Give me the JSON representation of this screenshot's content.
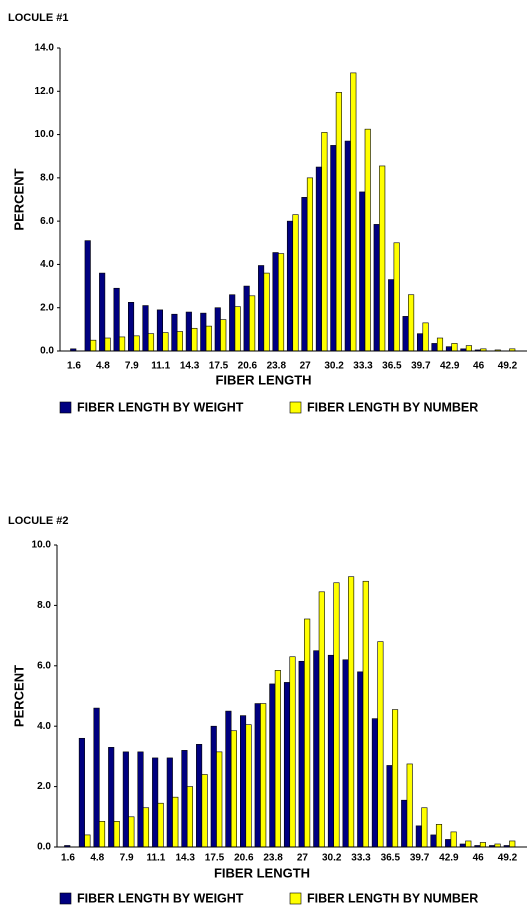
{
  "chart_data": [
    {
      "type": "bar",
      "title": "LOCULE #1",
      "x_label": "FIBER LENGTH",
      "y_label": "PERCENT",
      "categories": [
        "1.6",
        null,
        "4.8",
        null,
        "7.9",
        null,
        "11.1",
        null,
        "14.3",
        null,
        "17.5",
        null,
        "20.6",
        null,
        "23.8",
        null,
        "27",
        null,
        "30.2",
        null,
        "33.3",
        null,
        "36.5",
        null,
        "39.7",
        null,
        "42.9",
        null,
        "46",
        null,
        "49.2"
      ],
      "series": [
        {
          "name": "FIBER LENGTH BY WEIGHT",
          "color": "#000080",
          "values": [
            0.1,
            5.1,
            3.6,
            2.9,
            2.25,
            2.1,
            1.9,
            1.7,
            1.8,
            1.75,
            2.0,
            2.6,
            3.0,
            3.95,
            4.55,
            6.0,
            7.1,
            8.5,
            9.5,
            9.7,
            7.35,
            5.85,
            3.3,
            1.6,
            0.8,
            0.35,
            0.2,
            0.1,
            0.05,
            0.0,
            0.0
          ]
        },
        {
          "name": "FIBER LENGTH BY NUMBER",
          "color": "#ffff00",
          "values": [
            0.0,
            0.5,
            0.6,
            0.65,
            0.7,
            0.8,
            0.85,
            0.9,
            1.05,
            1.15,
            1.45,
            2.05,
            2.55,
            3.6,
            4.5,
            6.3,
            8.0,
            10.1,
            11.95,
            12.85,
            10.25,
            8.55,
            5.0,
            2.6,
            1.3,
            0.6,
            0.35,
            0.25,
            0.1,
            0.05,
            0.1
          ]
        }
      ],
      "ylim": [
        0,
        14
      ],
      "yticks": [
        {
          "value": 0,
          "label": "0.0"
        },
        {
          "value": 2,
          "label": "2.0"
        },
        {
          "value": 4,
          "label": "4.0"
        },
        {
          "value": 6,
          "label": "6.0"
        },
        {
          "value": 8,
          "label": "8.0"
        },
        {
          "value": 10,
          "label": "10.0"
        },
        {
          "value": 12,
          "label": "12.0"
        },
        {
          "value": 14,
          "label": "14.0"
        }
      ],
      "legend": "bottom"
    },
    {
      "type": "bar",
      "title": "LOCULE #2",
      "x_label": "FIBER LENGTH",
      "y_label": "PERCENT",
      "categories": [
        "1.6",
        null,
        "4.8",
        null,
        "7.9",
        null,
        "11.1",
        null,
        "14.3",
        null,
        "17.5",
        null,
        "20.6",
        null,
        "23.8",
        null,
        "27",
        null,
        "30.2",
        null,
        "33.3",
        null,
        "36.5",
        null,
        "39.7",
        null,
        "42.9",
        null,
        "46",
        null,
        "49.2"
      ],
      "series": [
        {
          "name": "FIBER LENGTH BY WEIGHT",
          "color": "#000080",
          "values": [
            0.05,
            3.6,
            4.6,
            3.3,
            3.15,
            3.15,
            2.95,
            2.95,
            3.2,
            3.4,
            4.0,
            4.5,
            4.35,
            4.75,
            5.4,
            5.45,
            6.15,
            6.5,
            6.35,
            6.2,
            5.8,
            4.25,
            2.7,
            1.55,
            0.7,
            0.4,
            0.25,
            0.1,
            0.05,
            0.05,
            0.05
          ]
        },
        {
          "name": "FIBER LENGTH BY NUMBER",
          "color": "#ffff00",
          "values": [
            0.0,
            0.4,
            0.85,
            0.85,
            1.0,
            1.3,
            1.45,
            1.65,
            2.0,
            2.4,
            3.15,
            3.85,
            4.05,
            4.75,
            5.85,
            6.3,
            7.55,
            8.45,
            8.75,
            8.95,
            8.8,
            6.8,
            4.55,
            2.75,
            1.3,
            0.75,
            0.5,
            0.2,
            0.15,
            0.1,
            0.2
          ]
        }
      ],
      "ylim": [
        0,
        10
      ],
      "yticks": [
        {
          "value": 0,
          "label": "0.0"
        },
        {
          "value": 2,
          "label": "2.0"
        },
        {
          "value": 4,
          "label": "4.0"
        },
        {
          "value": 6,
          "label": "6.0"
        },
        {
          "value": 8,
          "label": "8.0"
        },
        {
          "value": 10,
          "label": "10.0"
        }
      ],
      "legend": "bottom"
    }
  ]
}
